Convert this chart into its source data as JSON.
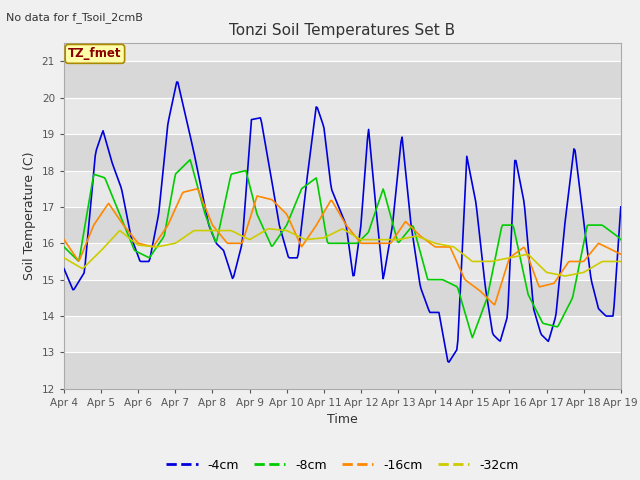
{
  "title": "Tonzi Soil Temperatures Set B",
  "subtitle": "No data for f_Tsoil_2cmB",
  "ylabel": "Soil Temperature (C)",
  "xlabel": "Time",
  "annotation": "TZ_fmet",
  "ylim": [
    12.0,
    21.5
  ],
  "yticks": [
    12.0,
    13.0,
    14.0,
    15.0,
    16.0,
    17.0,
    18.0,
    19.0,
    20.0,
    21.0
  ],
  "xtick_labels": [
    "Apr 4",
    "Apr 5",
    "Apr 6",
    "Apr 7",
    "Apr 8",
    "Apr 9",
    "Apr 10",
    "Apr 11",
    "Apr 12",
    "Apr 13",
    "Apr 14",
    "Apr 15",
    "Apr 16",
    "Apr 17",
    "Apr 18",
    "Apr 19"
  ],
  "colors": {
    "-4cm": "#0000dd",
    "-8cm": "#00cc00",
    "-16cm": "#ff8800",
    "-32cm": "#cccc00"
  },
  "fig_bg": "#f0f0f0",
  "plot_bg": "#e8e8e8",
  "grid_color": "#ffffff",
  "key_days_4": [
    0,
    0.25,
    0.55,
    0.85,
    1.05,
    1.3,
    1.55,
    1.8,
    2.05,
    2.3,
    2.55,
    2.8,
    3.05,
    3.3,
    3.5,
    3.7,
    3.9,
    4.1,
    4.3,
    4.55,
    4.8,
    5.05,
    5.3,
    5.55,
    5.8,
    6.05,
    6.3,
    6.55,
    6.8,
    7.0,
    7.2,
    7.4,
    7.6,
    7.8,
    8.0,
    8.2,
    8.4,
    8.6,
    8.85,
    9.1,
    9.35,
    9.6,
    9.85,
    10.1,
    10.35,
    10.6,
    10.85,
    11.1,
    11.35,
    11.55,
    11.75,
    11.95,
    12.15,
    12.4,
    12.65,
    12.85,
    13.05,
    13.25,
    13.5,
    13.75,
    14.0,
    14.2,
    14.4,
    14.6,
    14.8,
    15.0
  ],
  "key_vals_4": [
    15.3,
    14.7,
    15.2,
    18.5,
    19.1,
    18.2,
    17.5,
    16.2,
    15.5,
    15.5,
    16.8,
    19.3,
    20.5,
    19.4,
    18.5,
    17.5,
    16.5,
    16.0,
    15.8,
    15.0,
    16.0,
    19.4,
    19.45,
    18.0,
    16.5,
    15.6,
    15.6,
    17.8,
    19.8,
    19.2,
    17.5,
    17.0,
    16.5,
    15.0,
    16.5,
    19.2,
    17.0,
    15.0,
    16.5,
    19.0,
    16.5,
    14.8,
    14.1,
    14.1,
    12.7,
    13.1,
    18.4,
    17.1,
    14.8,
    13.5,
    13.3,
    14.0,
    18.4,
    17.1,
    14.2,
    13.5,
    13.3,
    14.0,
    16.6,
    18.7,
    16.6,
    15.0,
    14.2,
    14.0,
    14.0,
    17.0
  ],
  "key_days_8": [
    0,
    0.4,
    0.8,
    1.1,
    1.5,
    1.9,
    2.3,
    2.7,
    3.0,
    3.4,
    3.8,
    4.1,
    4.5,
    4.9,
    5.2,
    5.6,
    6.0,
    6.4,
    6.8,
    7.1,
    7.5,
    7.9,
    8.2,
    8.6,
    9.0,
    9.4,
    9.8,
    10.2,
    10.6,
    11.0,
    11.4,
    11.8,
    12.1,
    12.5,
    12.9,
    13.3,
    13.7,
    14.1,
    14.5,
    14.9,
    15.0
  ],
  "key_vals_8": [
    15.9,
    15.5,
    17.9,
    17.8,
    16.8,
    15.8,
    15.6,
    16.2,
    17.9,
    18.3,
    16.8,
    16.0,
    17.9,
    18.0,
    16.8,
    15.9,
    16.5,
    17.5,
    17.8,
    16.0,
    16.0,
    16.0,
    16.3,
    17.5,
    16.0,
    16.5,
    15.0,
    15.0,
    14.8,
    13.4,
    14.5,
    16.5,
    16.5,
    14.6,
    13.8,
    13.7,
    14.5,
    16.5,
    16.5,
    16.2,
    16.1
  ],
  "key_days_16": [
    0,
    0.4,
    0.8,
    1.2,
    1.6,
    2.0,
    2.4,
    2.8,
    3.2,
    3.6,
    4.0,
    4.4,
    4.8,
    5.2,
    5.6,
    6.0,
    6.4,
    6.8,
    7.2,
    7.6,
    8.0,
    8.4,
    8.8,
    9.2,
    9.6,
    10.0,
    10.4,
    10.8,
    11.2,
    11.6,
    12.0,
    12.4,
    12.8,
    13.2,
    13.6,
    14.0,
    14.4,
    14.8,
    15.0
  ],
  "key_vals_16": [
    16.1,
    15.5,
    16.5,
    17.1,
    16.5,
    16.0,
    15.9,
    16.5,
    17.4,
    17.5,
    16.5,
    16.0,
    16.0,
    17.3,
    17.2,
    16.8,
    15.9,
    16.5,
    17.2,
    16.5,
    16.0,
    16.0,
    16.0,
    16.6,
    16.2,
    15.9,
    15.9,
    15.0,
    14.7,
    14.3,
    15.6,
    15.9,
    14.8,
    14.9,
    15.5,
    15.5,
    16.0,
    15.8,
    15.7
  ],
  "key_days_32": [
    0,
    0.5,
    1.0,
    1.5,
    2.0,
    2.5,
    3.0,
    3.5,
    4.0,
    4.5,
    5.0,
    5.5,
    6.0,
    6.5,
    7.0,
    7.5,
    8.0,
    8.5,
    9.0,
    9.5,
    10.0,
    10.5,
    11.0,
    11.5,
    12.0,
    12.5,
    13.0,
    13.5,
    14.0,
    14.5,
    15.0
  ],
  "key_vals_32": [
    15.6,
    15.3,
    15.8,
    16.35,
    15.95,
    15.9,
    16.0,
    16.35,
    16.35,
    16.35,
    16.1,
    16.4,
    16.35,
    16.1,
    16.15,
    16.4,
    16.1,
    16.1,
    16.1,
    16.2,
    16.0,
    15.9,
    15.5,
    15.5,
    15.6,
    15.7,
    15.2,
    15.1,
    15.2,
    15.5,
    15.5
  ]
}
